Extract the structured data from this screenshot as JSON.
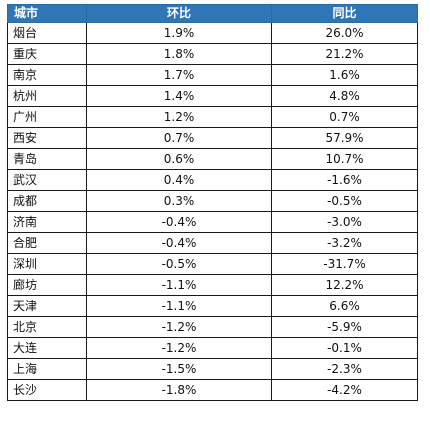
{
  "table": {
    "headers": [
      "城市",
      "环比",
      "同比"
    ],
    "rows": [
      {
        "city": "烟台",
        "mom": "1.9%",
        "yoy": "26.0%"
      },
      {
        "city": "重庆",
        "mom": "1.8%",
        "yoy": "21.2%"
      },
      {
        "city": "南京",
        "mom": "1.7%",
        "yoy": "1.6%"
      },
      {
        "city": "杭州",
        "mom": "1.4%",
        "yoy": "4.8%"
      },
      {
        "city": "广州",
        "mom": "1.2%",
        "yoy": "0.7%"
      },
      {
        "city": "西安",
        "mom": "0.7%",
        "yoy": "57.9%"
      },
      {
        "city": "青岛",
        "mom": "0.6%",
        "yoy": "10.7%"
      },
      {
        "city": "武汉",
        "mom": "0.4%",
        "yoy": "-1.6%"
      },
      {
        "city": "成都",
        "mom": "0.3%",
        "yoy": "-0.5%"
      },
      {
        "city": "济南",
        "mom": "-0.4%",
        "yoy": "-3.0%"
      },
      {
        "city": "合肥",
        "mom": "-0.4%",
        "yoy": "-3.2%"
      },
      {
        "city": "深圳",
        "mom": "-0.5%",
        "yoy": "-31.7%"
      },
      {
        "city": "廊坊",
        "mom": "-1.1%",
        "yoy": "12.2%"
      },
      {
        "city": "天津",
        "mom": "-1.1%",
        "yoy": "6.6%"
      },
      {
        "city": "北京",
        "mom": "-1.2%",
        "yoy": "-5.9%"
      },
      {
        "city": "大连",
        "mom": "-1.2%",
        "yoy": "-0.1%"
      },
      {
        "city": "上海",
        "mom": "-1.5%",
        "yoy": "-2.3%"
      },
      {
        "city": "长沙",
        "mom": "-1.8%",
        "yoy": "-4.2%"
      }
    ]
  },
  "colors": {
    "header_bg": "#2f76b6",
    "header_text": "#ffffff",
    "border": "#1a1a1a"
  }
}
